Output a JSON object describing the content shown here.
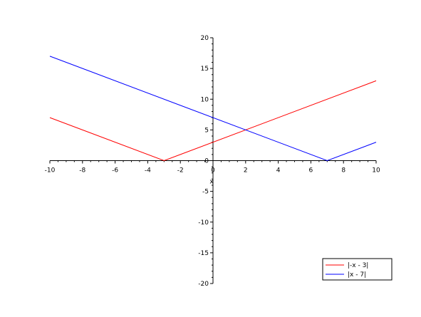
{
  "chart_data": {
    "type": "line",
    "title": "",
    "xlabel": "x",
    "ylabel": "",
    "xlim": [
      -10,
      10
    ],
    "ylim": [
      -20,
      20
    ],
    "x_ticks": [
      -10,
      -8,
      -6,
      -4,
      -2,
      0,
      2,
      4,
      6,
      8,
      10
    ],
    "y_ticks": [
      -20,
      -15,
      -10,
      -5,
      0,
      5,
      10,
      15,
      20
    ],
    "grid": false,
    "legend_position": "bottom-right",
    "series": [
      {
        "name": "|-x - 3|",
        "color": "#ff0000",
        "x": [
          -10,
          -3,
          10
        ],
        "y": [
          7,
          0,
          13
        ]
      },
      {
        "name": "|x - 7|",
        "color": "#0000ff",
        "x": [
          -10,
          7,
          10
        ],
        "y": [
          17,
          0,
          3
        ]
      }
    ]
  }
}
